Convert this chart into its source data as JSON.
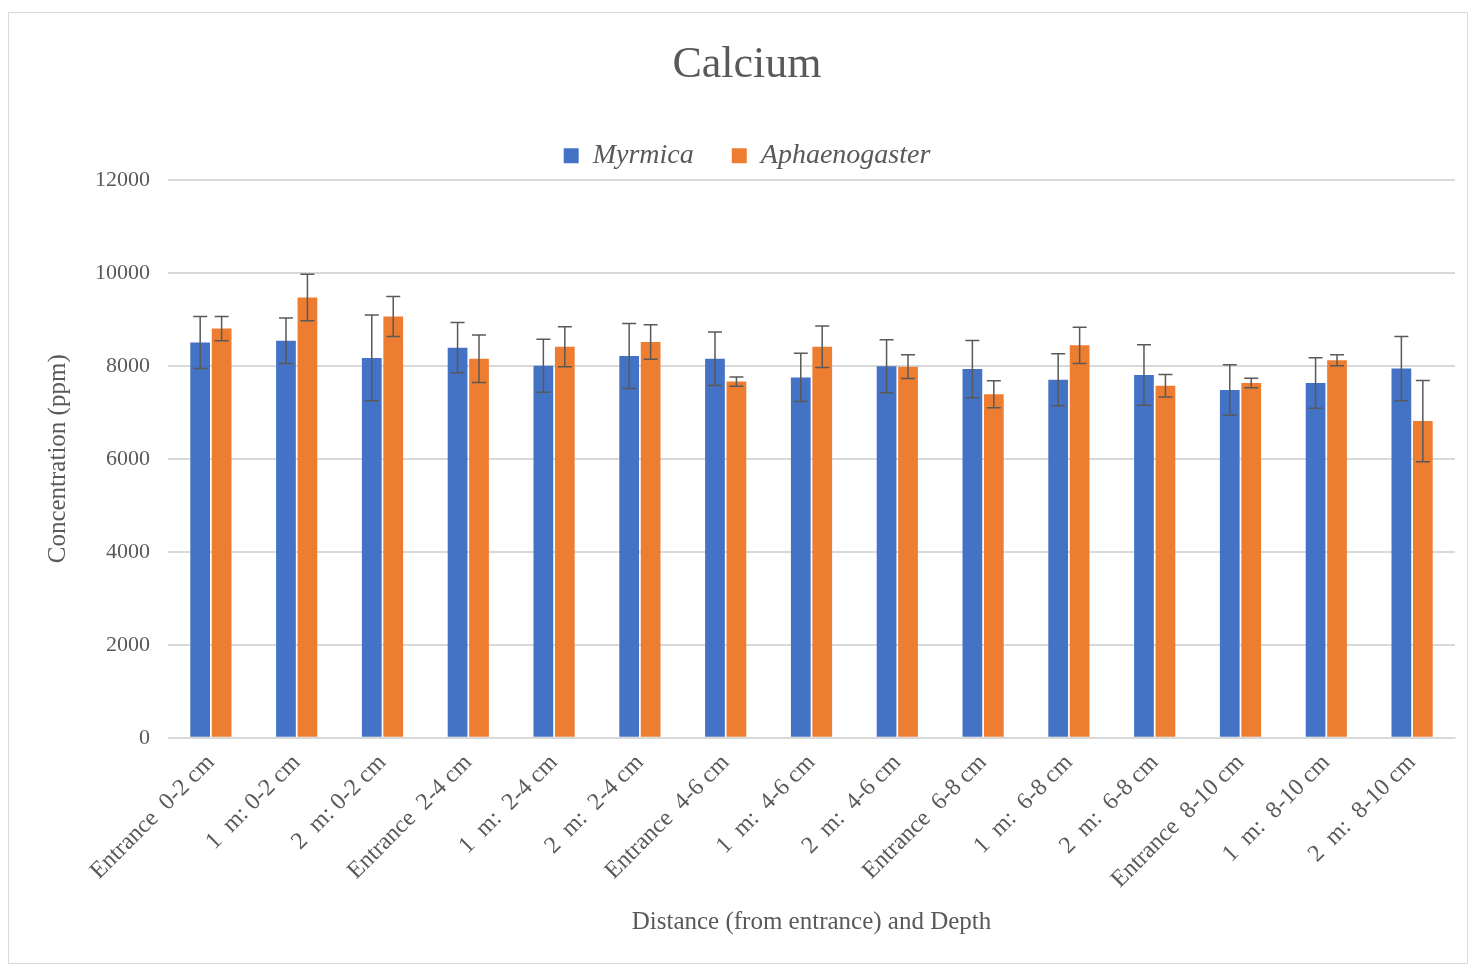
{
  "chart_data": {
    "type": "bar",
    "title": "Calcium",
    "xlabel": "Distance (from entrance) and Depth",
    "ylabel": "Concentration (ppm)",
    "categories": [
      "Entrance  0-2 cm",
      "1  m: 0-2 cm",
      "2  m: 0-2 cm",
      "Entrance  2-4 cm",
      "1  m:  2-4 cm",
      "2  m:  2-4 cm",
      "Entrance  4-6 cm",
      "1  m:  4-6 cm",
      "2  m:  4-6 cm",
      "Entrance  6-8 cm",
      "1  m:  6-8 cm",
      "2  m:  6-8 cm",
      "Entrance  8-10 cm",
      "1  m:  8-10 cm",
      "2  m:  8-10 cm"
    ],
    "series": [
      {
        "name": "Myrmica",
        "color": "#4472c4",
        "values": [
          8500,
          8540,
          8170,
          8390,
          8000,
          8210,
          8150,
          7750,
          7990,
          7930,
          7700,
          7800,
          7480,
          7630,
          7940
        ],
        "errors": [
          560,
          490,
          920,
          540,
          570,
          700,
          575,
          520,
          570,
          615,
          560,
          650,
          545,
          545,
          690
        ]
      },
      {
        "name": "Aphaenogaster",
        "color": "#ed7d31",
        "values": [
          8800,
          9470,
          9060,
          8150,
          8410,
          8510,
          7660,
          8410,
          7980,
          7390,
          8440,
          7570,
          7630,
          8120,
          6810
        ],
        "errors": [
          260,
          500,
          430,
          510,
          430,
          370,
          100,
          445,
          255,
          290,
          390,
          240,
          100,
          120,
          875
        ]
      }
    ],
    "ylim": [
      0,
      12000
    ],
    "yticks": [
      0,
      2000,
      4000,
      6000,
      8000,
      10000,
      12000
    ],
    "grid": "y",
    "legend": "top"
  }
}
